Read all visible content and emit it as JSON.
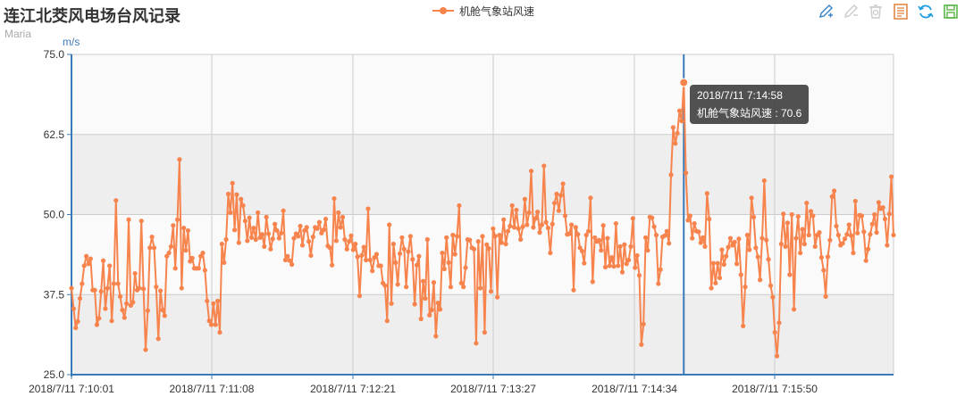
{
  "title": "连江北茭风电场台风记录",
  "subtitle": "Maria",
  "toolbox": [
    {
      "name": "zoom-icon",
      "label": "区域缩放"
    },
    {
      "name": "zoom-reset-icon",
      "label": "区域缩放还原"
    },
    {
      "name": "restore-icon",
      "label": "还原"
    },
    {
      "name": "data-view-icon",
      "label": "数据视图"
    },
    {
      "name": "refresh-icon",
      "label": "刷新"
    },
    {
      "name": "save-image-icon",
      "label": "保存为图片"
    }
  ],
  "tooltip": {
    "time": "2018/7/11 7:14:58",
    "series_label": "机舱气象站风速",
    "value": "70.6",
    "text": "机舱气象站风速 : 70.6"
  },
  "chart_data": {
    "type": "line",
    "title": "连江北茭风电场台风记录",
    "subtitle": "Maria",
    "xlabel": "",
    "ylabel": "m/s",
    "ylim": [
      25,
      75
    ],
    "yticks": [
      "25.0",
      "37.5",
      "50.0",
      "62.5",
      "75.0"
    ],
    "xticks": [
      "2018/7/11 7:10:01",
      "2018/7/11 7:11:08",
      "2018/7/11 7:12:21",
      "2018/7/11 7:13:27",
      "2018/7/11 7:14:34",
      "2018/7/11 7:15:50"
    ],
    "grid": true,
    "legend_position": "top-center",
    "color": "#f7834d",
    "axis_color": "#3b7ab8",
    "series": [
      {
        "name": "机舱气象站风速",
        "values": [
          38.5,
          35.3,
          32.3,
          33.3,
          36.9,
          39.2,
          42.0,
          43.5,
          42.3,
          43.1,
          38.2,
          38.2,
          32.8,
          33.8,
          38.0,
          42.8,
          35.3,
          38.5,
          42.0,
          33.4,
          39.2,
          52.2,
          39.2,
          37.2,
          35.1,
          33.9,
          36.1,
          49.2,
          35.8,
          36.3,
          40.8,
          38.2,
          38.5,
          49.0,
          38.4,
          28.9,
          35.0,
          44.8,
          46.5,
          44.8,
          38.7,
          30.6,
          38.1,
          35.1,
          34.2,
          43.5,
          44.0,
          45.0,
          48.3,
          41.6,
          49.2,
          58.6,
          38.5,
          47.9,
          44.4,
          47.5,
          42.7,
          43.2,
          41.6,
          41.6,
          41.6,
          43.5,
          44.0,
          41.3,
          36.5,
          33.4,
          32.8,
          36.1,
          32.8,
          36.5,
          31.6,
          45.4,
          42.5,
          46.1,
          53.2,
          50.3,
          54.9,
          47.6,
          53.1,
          45.6,
          52.4,
          51.4,
          49.0,
          45.9,
          49.5,
          46.4,
          47.9,
          46.1,
          50.3,
          46.4,
          46.9,
          45.0,
          49.6,
          47.0,
          44.6,
          46.2,
          48.5,
          47.5,
          46.3,
          47.1,
          50.6,
          42.9,
          43.5,
          42.8,
          42.2,
          46.3,
          47.0,
          46.6,
          48.2,
          45.2,
          47.5,
          48.0,
          45.8,
          43.6,
          46.5,
          48.0,
          47.8,
          48.8,
          47.1,
          47.6,
          49.3,
          45.1,
          44.8,
          42.1,
          52.5,
          45.9,
          50.3,
          48.0,
          49.6,
          46.1,
          44.6,
          45.8,
          46.7,
          44.5,
          45.4,
          43.4,
          37.3,
          43.6,
          44.9,
          42.9,
          50.9,
          42.9,
          41.2,
          43.3,
          43.8,
          42.0,
          42.0,
          39.3,
          38.9,
          33.4,
          48.4,
          36.1,
          45.4,
          42.5,
          39.1,
          43.9,
          46.4,
          44.6,
          38.7,
          44.2,
          46.6,
          43.0,
          36.0,
          42.1,
          43.5,
          33.7,
          39.6,
          36.9,
          46.1,
          34.3,
          35.1,
          39.4,
          31.0,
          36.2,
          35.2,
          44.0,
          41.5,
          46.4,
          42.5,
          38.7,
          46.8,
          43.8,
          46.6,
          51.4,
          39.3,
          38.7,
          41.7,
          46.1,
          46.0,
          44.8,
          44.6,
          29.9,
          45.8,
          38.5,
          46.6,
          31.6,
          45.3,
          44.7,
          38.0,
          47.8,
          46.6,
          37.1,
          46.8,
          45.6,
          49.2,
          45.4,
          47.4,
          48.2,
          51.4,
          48.0,
          50.7,
          47.8,
          46.1,
          48.1,
          52.4,
          48.4,
          50.3,
          56.8,
          48.0,
          49.4,
          50.4,
          47.2,
          48.4,
          57.6,
          48.8,
          47.9,
          44.0,
          48.5,
          51.8,
          53.2,
          50.6,
          53.0,
          54.8,
          49.8,
          46.9,
          47.0,
          48.4,
          38.2,
          48.0,
          46.9,
          44.8,
          44.3,
          42.4,
          46.8,
          47.4,
          52.6,
          39.5,
          46.4,
          45.8,
          46.0,
          44.4,
          48.3,
          41.8,
          46.3,
          42.0,
          43.3,
          41.9,
          48.6,
          42.0,
          45.0,
          41.0,
          45.3,
          42.3,
          42.9,
          45.0,
          49.4,
          41.7,
          43.6,
          40.5,
          29.7,
          32.9,
          46.4,
          44.4,
          49.6,
          49.5,
          48.1,
          46.8,
          39.2,
          41.4,
          46.5,
          46.7,
          47.4,
          45.5,
          56.2,
          63.6,
          61.1,
          62.7,
          66.2,
          64.6,
          70.6,
          56.5,
          49.1,
          49.8,
          46.3,
          48.6,
          47.4,
          47.3,
          45.6,
          46.4,
          45.0,
          53.3,
          49.3,
          38.5,
          42.4,
          39.3,
          42.4,
          40.1,
          44.5,
          42.2,
          43.5,
          44.9,
          46.3,
          45.2,
          45.7,
          42.3,
          46.2,
          40.6,
          32.6,
          38.7,
          46.8,
          44.5,
          52.6,
          49.6,
          44.8,
          43.4,
          39.8,
          46.3,
          55.3,
          46.0,
          43.0,
          38.9,
          37.1,
          31.6,
          27.9,
          33.1,
          45.4,
          50.1,
          45.0,
          48.7,
          40.6,
          50.0,
          35.2,
          46.3,
          49.7,
          44.0,
          47.7,
          45.4,
          51.8,
          46.8,
          50.5,
          49.8,
          45.0,
          46.8,
          47.2,
          43.3,
          41.3,
          37.2,
          43.4,
          46.0,
          52.8,
          53.7,
          48.2,
          46.8,
          45.2,
          45.5,
          46.2,
          46.9,
          48.4,
          46.7,
          44.0,
          52.1,
          47.1,
          49.9,
          49.8,
          47.3,
          42.8,
          44.6,
          46.9,
          48.5,
          50.0,
          47.2,
          51.9,
          50.9,
          51.1,
          49.3,
          45.2,
          50.1,
          55.9,
          46.8
        ]
      }
    ],
    "markline": {
      "at": "2018/7/11 7:14:58",
      "value": 70.6
    }
  }
}
